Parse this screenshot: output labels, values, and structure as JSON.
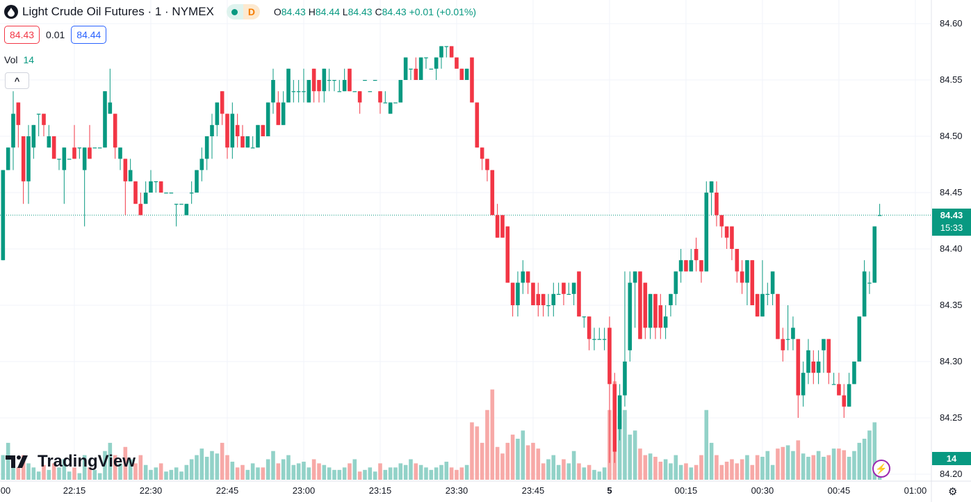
{
  "header": {
    "title": "Light Crude Oil Futures · 1 · NYMEX",
    "status_letter": "D",
    "ohlc": {
      "o_label": "O",
      "o": "84.43",
      "h_label": "H",
      "h": "84.44",
      "l_label": "L",
      "l": "84.43",
      "c_label": "C",
      "c": "84.43",
      "change": "+0.01 (+0.01%)"
    }
  },
  "quotes": {
    "bid": "84.43",
    "spread": "0.01",
    "ask": "84.44"
  },
  "volume_legend": {
    "label": "Vol",
    "value": "14"
  },
  "price_badge": {
    "price": "84.43",
    "countdown": "15:33"
  },
  "volume_badge": "14",
  "logo_text": "TradingView",
  "colors": {
    "up": "#089981",
    "down": "#f23645",
    "up_vol": "#92d2c8",
    "down_vol": "#f7a9a7",
    "grid": "#f0f3fa",
    "bid": "#f23645",
    "ask": "#2962ff"
  },
  "chart_data": {
    "type": "candlestick",
    "title": "Light Crude Oil Futures · 1 · NYMEX",
    "interval_minutes": 1,
    "start_time": "22:00",
    "ylim": [
      84.195,
      84.615
    ],
    "y_ticks": [
      "84.60",
      "84.55",
      "84.50",
      "84.45",
      "84.40",
      "84.35",
      "84.30",
      "84.25",
      "84.20"
    ],
    "x_ticks": [
      {
        "label": "00",
        "minute": 0
      },
      {
        "label": "22:15",
        "minute": 15
      },
      {
        "label": "22:30",
        "minute": 30
      },
      {
        "label": "22:45",
        "minute": 45
      },
      {
        "label": "23:00",
        "minute": 60
      },
      {
        "label": "23:15",
        "minute": 75
      },
      {
        "label": "23:30",
        "minute": 90
      },
      {
        "label": "23:45",
        "minute": 105
      },
      {
        "label": "5",
        "minute": 120,
        "bold": true
      },
      {
        "label": "00:15",
        "minute": 135
      },
      {
        "label": "00:30",
        "minute": 150
      },
      {
        "label": "00:45",
        "minute": 165
      },
      {
        "label": "01:00",
        "minute": 180
      }
    ],
    "last_price": 84.43,
    "candles_ohlc": [
      [
        84.45,
        84.46,
        84.41,
        84.41
      ],
      [
        84.39,
        84.47,
        84.39,
        84.47
      ],
      [
        84.47,
        84.49,
        84.47,
        84.49
      ],
      [
        84.49,
        84.54,
        84.47,
        84.52
      ],
      [
        84.53,
        84.53,
        84.49,
        84.51
      ],
      [
        84.5,
        84.5,
        84.44,
        84.46
      ],
      [
        84.46,
        84.51,
        84.44,
        84.5
      ],
      [
        84.49,
        84.51,
        84.48,
        84.51
      ],
      [
        84.52,
        84.52,
        84.5,
        84.52
      ],
      [
        84.52,
        84.52,
        84.5,
        84.51
      ],
      [
        84.49,
        84.51,
        84.49,
        84.5
      ],
      [
        84.5,
        84.5,
        84.48,
        84.48
      ],
      [
        84.48,
        84.48,
        84.47,
        84.48
      ],
      [
        84.47,
        84.49,
        84.44,
        84.49
      ],
      [
        84.48,
        84.48,
        84.48,
        84.48
      ],
      [
        84.49,
        84.51,
        84.48,
        84.48
      ],
      [
        84.49,
        84.49,
        84.48,
        84.49
      ],
      [
        84.47,
        84.49,
        84.42,
        84.49
      ],
      [
        84.49,
        84.51,
        84.48,
        84.48
      ],
      [
        84.49,
        84.49,
        84.49,
        84.49
      ],
      [
        84.49,
        84.49,
        84.49,
        84.49
      ],
      [
        84.49,
        84.54,
        84.49,
        84.54
      ],
      [
        84.52,
        84.56,
        84.52,
        84.53
      ],
      [
        84.52,
        84.52,
        84.48,
        84.49
      ],
      [
        84.48,
        84.49,
        84.47,
        84.49
      ],
      [
        84.48,
        84.48,
        84.43,
        84.46
      ],
      [
        84.46,
        84.48,
        84.46,
        84.47
      ],
      [
        84.46,
        84.46,
        84.44,
        84.44
      ],
      [
        84.44,
        84.45,
        84.43,
        84.43
      ],
      [
        84.44,
        84.46,
        84.44,
        84.45
      ],
      [
        84.45,
        84.47,
        84.45,
        84.46
      ],
      [
        84.46,
        84.46,
        84.45,
        84.46
      ],
      [
        84.46,
        84.46,
        84.45,
        84.45
      ],
      [
        84.45,
        84.45,
        84.45,
        84.45
      ],
      [
        84.45,
        84.45,
        84.45,
        84.45
      ],
      [
        84.44,
        84.44,
        84.42,
        84.44
      ],
      [
        84.44,
        84.44,
        84.44,
        84.44
      ],
      [
        84.43,
        84.44,
        84.43,
        84.44
      ],
      [
        84.45,
        84.46,
        84.44,
        84.45
      ],
      [
        84.45,
        84.47,
        84.45,
        84.47
      ],
      [
        84.47,
        84.49,
        84.46,
        84.48
      ],
      [
        84.48,
        84.5,
        84.47,
        84.5
      ],
      [
        84.5,
        84.52,
        84.48,
        84.51
      ],
      [
        84.51,
        84.53,
        84.5,
        84.53
      ],
      [
        84.54,
        84.54,
        84.51,
        84.52
      ],
      [
        84.52,
        84.52,
        84.48,
        84.49
      ],
      [
        84.49,
        84.53,
        84.48,
        84.52
      ],
      [
        84.51,
        84.52,
        84.49,
        84.5
      ],
      [
        84.5,
        84.51,
        84.49,
        84.49
      ],
      [
        84.49,
        84.5,
        84.49,
        84.5
      ],
      [
        84.49,
        84.5,
        84.49,
        84.49
      ],
      [
        84.49,
        84.51,
        84.49,
        84.51
      ],
      [
        84.51,
        84.51,
        84.5,
        84.5
      ],
      [
        84.5,
        84.53,
        84.5,
        84.53
      ],
      [
        84.53,
        84.56,
        84.52,
        84.55
      ],
      [
        84.53,
        84.54,
        84.51,
        84.51
      ],
      [
        84.51,
        84.54,
        84.51,
        84.53
      ],
      [
        84.53,
        84.56,
        84.53,
        84.56
      ],
      [
        84.54,
        84.55,
        84.53,
        84.54
      ],
      [
        84.54,
        84.55,
        84.53,
        84.54
      ],
      [
        84.54,
        84.56,
        84.53,
        84.54
      ],
      [
        84.53,
        84.55,
        84.53,
        84.55
      ],
      [
        84.56,
        84.56,
        84.53,
        84.54
      ],
      [
        84.55,
        84.55,
        84.53,
        84.54
      ],
      [
        84.54,
        84.56,
        84.53,
        84.56
      ],
      [
        84.55,
        84.56,
        84.54,
        84.55
      ],
      [
        84.55,
        84.55,
        84.54,
        84.55
      ],
      [
        84.54,
        84.55,
        84.54,
        84.54
      ],
      [
        84.54,
        84.56,
        84.54,
        84.55
      ],
      [
        84.56,
        84.56,
        84.54,
        84.54
      ],
      [
        84.54,
        84.54,
        84.54,
        84.54
      ],
      [
        84.54,
        84.54,
        84.52,
        84.53
      ],
      [
        84.55,
        84.55,
        84.55,
        84.55
      ],
      [
        84.54,
        84.54,
        84.54,
        84.54
      ],
      [
        84.55,
        84.55,
        84.55,
        84.55
      ],
      [
        84.54,
        84.54,
        84.52,
        84.53
      ],
      [
        84.53,
        84.54,
        84.53,
        84.53
      ],
      [
        84.52,
        84.53,
        84.52,
        84.53
      ],
      [
        84.53,
        84.53,
        84.53,
        84.53
      ],
      [
        84.53,
        84.55,
        84.53,
        84.55
      ],
      [
        84.55,
        84.57,
        84.55,
        84.57
      ],
      [
        84.56,
        84.56,
        84.55,
        84.56
      ],
      [
        84.56,
        84.57,
        84.55,
        84.55
      ],
      [
        84.55,
        84.57,
        84.55,
        84.57
      ],
      [
        84.57,
        84.57,
        84.56,
        84.57
      ],
      [
        84.56,
        84.56,
        84.56,
        84.56
      ],
      [
        84.56,
        84.57,
        84.55,
        84.57
      ],
      [
        84.57,
        84.58,
        84.56,
        84.58
      ],
      [
        84.58,
        84.58,
        84.57,
        84.58
      ],
      [
        84.58,
        84.58,
        84.57,
        84.57
      ],
      [
        84.57,
        84.57,
        84.56,
        84.56
      ],
      [
        84.56,
        84.56,
        84.55,
        84.55
      ],
      [
        84.55,
        84.56,
        84.55,
        84.56
      ],
      [
        84.57,
        84.57,
        84.53,
        84.53
      ],
      [
        84.53,
        84.53,
        84.49,
        84.49
      ],
      [
        84.49,
        84.49,
        84.47,
        84.48
      ],
      [
        84.48,
        84.48,
        84.46,
        84.47
      ],
      [
        84.47,
        84.47,
        84.43,
        84.43
      ],
      [
        84.43,
        84.44,
        84.41,
        84.41
      ],
      [
        84.43,
        84.43,
        84.41,
        84.41
      ],
      [
        84.42,
        84.42,
        84.37,
        84.37
      ],
      [
        84.37,
        84.37,
        84.34,
        84.35
      ],
      [
        84.35,
        84.38,
        84.34,
        84.37
      ],
      [
        84.37,
        84.39,
        84.36,
        84.38
      ],
      [
        84.38,
        84.38,
        84.36,
        84.37
      ],
      [
        84.37,
        84.37,
        84.35,
        84.35
      ],
      [
        84.36,
        84.37,
        84.34,
        84.35
      ],
      [
        84.36,
        84.36,
        84.34,
        84.35
      ],
      [
        84.35,
        84.36,
        84.34,
        84.35
      ],
      [
        84.35,
        84.37,
        84.34,
        84.36
      ],
      [
        84.36,
        84.37,
        84.36,
        84.36
      ],
      [
        84.37,
        84.37,
        84.35,
        84.36
      ],
      [
        84.36,
        84.37,
        84.36,
        84.36
      ],
      [
        84.36,
        84.37,
        84.35,
        84.37
      ],
      [
        84.38,
        84.38,
        84.34,
        84.34
      ],
      [
        84.34,
        84.34,
        84.33,
        84.34
      ],
      [
        84.34,
        84.34,
        84.31,
        84.32
      ],
      [
        84.32,
        84.33,
        84.31,
        84.32
      ],
      [
        84.32,
        84.33,
        84.32,
        84.32
      ],
      [
        84.32,
        84.33,
        84.31,
        84.32
      ],
      [
        84.33,
        84.34,
        84.21,
        84.28
      ],
      [
        84.28,
        84.29,
        84.21,
        84.22
      ],
      [
        84.24,
        84.28,
        84.23,
        84.27
      ],
      [
        84.27,
        84.38,
        84.26,
        84.3
      ],
      [
        84.31,
        84.38,
        84.3,
        84.37
      ],
      [
        84.37,
        84.38,
        84.33,
        84.38
      ],
      [
        84.38,
        84.38,
        84.32,
        84.32
      ],
      [
        84.37,
        84.37,
        84.32,
        84.33
      ],
      [
        84.33,
        84.36,
        84.32,
        84.36
      ],
      [
        84.36,
        84.36,
        84.32,
        84.33
      ],
      [
        84.35,
        84.36,
        84.32,
        84.33
      ],
      [
        84.33,
        84.35,
        84.32,
        84.34
      ],
      [
        84.35,
        84.36,
        84.34,
        84.36
      ],
      [
        84.36,
        84.38,
        84.35,
        84.38
      ],
      [
        84.38,
        84.4,
        84.37,
        84.39
      ],
      [
        84.39,
        84.39,
        84.38,
        84.38
      ],
      [
        84.38,
        84.4,
        84.38,
        84.39
      ],
      [
        84.4,
        84.41,
        84.38,
        84.39
      ],
      [
        84.39,
        84.39,
        84.37,
        84.38
      ],
      [
        84.38,
        84.46,
        84.38,
        84.45
      ],
      [
        84.45,
        84.46,
        84.43,
        84.46
      ],
      [
        84.45,
        84.46,
        84.42,
        84.43
      ],
      [
        84.43,
        84.43,
        84.41,
        84.42
      ],
      [
        84.42,
        84.42,
        84.4,
        84.41
      ],
      [
        84.42,
        84.42,
        84.39,
        84.4
      ],
      [
        84.4,
        84.4,
        84.37,
        84.38
      ],
      [
        84.38,
        84.39,
        84.36,
        84.37
      ],
      [
        84.37,
        84.39,
        84.35,
        84.39
      ],
      [
        84.39,
        84.39,
        84.35,
        84.35
      ],
      [
        84.36,
        84.36,
        84.34,
        84.34
      ],
      [
        84.34,
        84.39,
        84.34,
        84.36
      ],
      [
        84.36,
        84.37,
        84.35,
        84.36
      ],
      [
        84.36,
        84.38,
        84.35,
        84.38
      ],
      [
        84.36,
        84.36,
        84.32,
        84.32
      ],
      [
        84.32,
        84.33,
        84.3,
        84.31
      ],
      [
        84.32,
        84.35,
        84.31,
        84.32
      ],
      [
        84.32,
        84.34,
        84.31,
        84.33
      ],
      [
        84.32,
        84.32,
        84.25,
        84.27
      ],
      [
        84.27,
        84.3,
        84.26,
        84.29
      ],
      [
        84.29,
        84.32,
        84.28,
        84.31
      ],
      [
        84.3,
        84.31,
        84.28,
        84.29
      ],
      [
        84.29,
        84.31,
        84.28,
        84.3
      ],
      [
        84.31,
        84.32,
        84.29,
        84.32
      ],
      [
        84.32,
        84.32,
        84.28,
        84.29
      ],
      [
        84.28,
        84.29,
        84.28,
        84.28
      ],
      [
        84.28,
        84.29,
        84.27,
        84.27
      ],
      [
        84.27,
        84.28,
        84.25,
        84.26
      ],
      [
        84.26,
        84.29,
        84.26,
        84.28
      ],
      [
        84.28,
        84.3,
        84.28,
        84.3
      ],
      [
        84.3,
        84.34,
        84.3,
        84.34
      ],
      [
        84.34,
        84.39,
        84.34,
        84.38
      ],
      [
        84.37,
        84.38,
        84.36,
        84.37
      ],
      [
        84.37,
        84.42,
        84.37,
        84.42
      ],
      [
        84.43,
        84.44,
        84.43,
        84.43
      ]
    ],
    "volumes": [
      120,
      30,
      45,
      25,
      15,
      30,
      20,
      15,
      10,
      18,
      12,
      20,
      15,
      25,
      10,
      15,
      8,
      30,
      15,
      12,
      8,
      35,
      45,
      30,
      20,
      40,
      25,
      20,
      30,
      18,
      12,
      15,
      20,
      10,
      12,
      15,
      10,
      18,
      25,
      30,
      38,
      28,
      35,
      32,
      45,
      30,
      22,
      15,
      18,
      12,
      20,
      15,
      15,
      25,
      35,
      20,
      25,
      30,
      18,
      20,
      22,
      15,
      25,
      20,
      18,
      15,
      12,
      12,
      15,
      20,
      25,
      10,
      12,
      15,
      10,
      20,
      12,
      15,
      15,
      20,
      18,
      25,
      20,
      18,
      15,
      12,
      15,
      18,
      22,
      15,
      12,
      15,
      18,
      70,
      65,
      45,
      85,
      110,
      40,
      32,
      45,
      55,
      50,
      60,
      42,
      45,
      38,
      20,
      25,
      30,
      18,
      25,
      20,
      35,
      20,
      15,
      18,
      12,
      10,
      15,
      85,
      120,
      78,
      85,
      55,
      60,
      38,
      30,
      32,
      28,
      22,
      25,
      20,
      30,
      18,
      20,
      15,
      18,
      30,
      85,
      45,
      30,
      18,
      22,
      25,
      20,
      25,
      30,
      18,
      30,
      28,
      35,
      18,
      38,
      40,
      42,
      35,
      48,
      32,
      28,
      30,
      35,
      28,
      30,
      38,
      38,
      36,
      28,
      35,
      45,
      50,
      60,
      70,
      14
    ]
  }
}
